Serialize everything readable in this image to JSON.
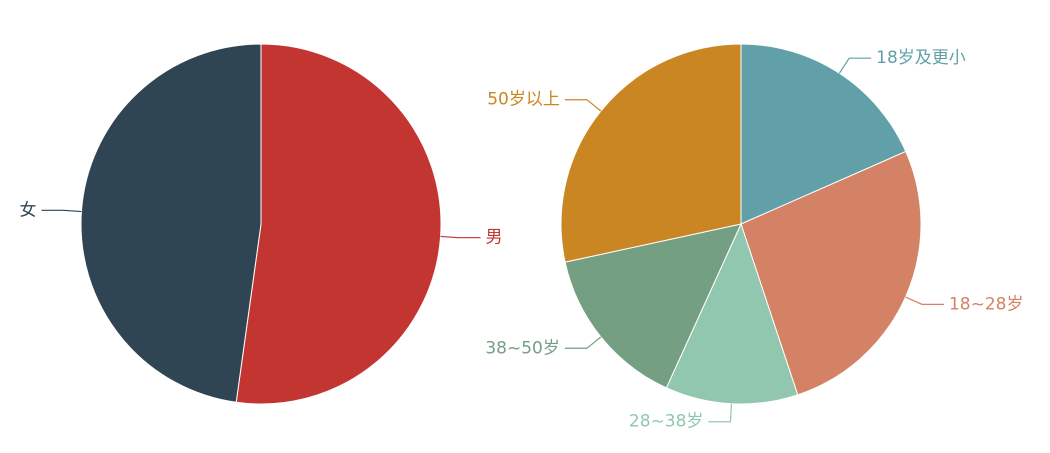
{
  "chart_data": [
    {
      "type": "pie",
      "title": "",
      "slices": [
        {
          "label": "男",
          "value": 52.2,
          "color": "#c23531"
        },
        {
          "label": "女",
          "value": 47.8,
          "color": "#2f4554"
        }
      ]
    },
    {
      "type": "pie",
      "title": "",
      "slices": [
        {
          "label": "18岁及更小",
          "value": 18.4,
          "color": "#61a0a8"
        },
        {
          "label": "18~28岁",
          "value": 26.5,
          "color": "#d48265"
        },
        {
          "label": "28~38岁",
          "value": 11.9,
          "color": "#91c7ae"
        },
        {
          "label": "38~50岁",
          "value": 14.8,
          "color": "#749f83"
        },
        {
          "label": "50岁以上",
          "value": 28.4,
          "color": "#ca8622"
        }
      ]
    }
  ]
}
